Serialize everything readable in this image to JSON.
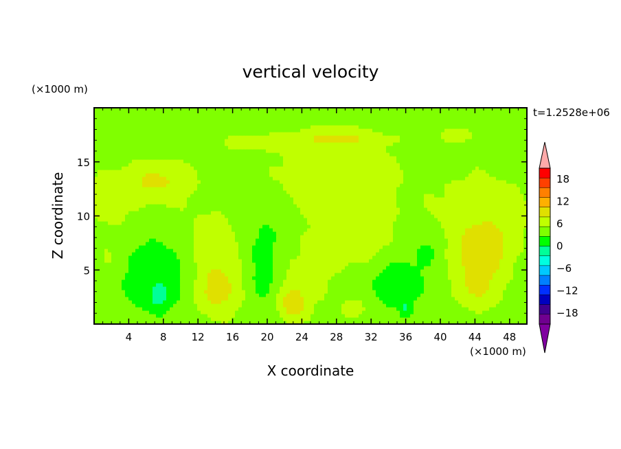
{
  "chart_data": {
    "type": "heatmap",
    "title": "vertical velocity",
    "xlabel": "X coordinate",
    "ylabel": "Z coordinate",
    "x_unit": "(×1000 m)",
    "y_unit": "(×1000 m)",
    "time_label": "t=1.2528e+06",
    "xlim": [
      0,
      50
    ],
    "ylim": [
      0,
      20
    ],
    "x_ticks": [
      4,
      8,
      12,
      16,
      20,
      24,
      28,
      32,
      36,
      40,
      44,
      48
    ],
    "y_ticks": [
      5,
      10,
      15
    ],
    "grid": false,
    "colorbar": {
      "ticks": [
        18,
        12,
        6,
        0,
        -6,
        -12,
        -18
      ],
      "levels": [
        21,
        18,
        15,
        12,
        9,
        6,
        3,
        0,
        -3,
        -6,
        -9,
        -12,
        -15,
        -18,
        -21
      ],
      "colors": [
        "#ff0000",
        "#ff4000",
        "#ff8000",
        "#ffb000",
        "#e0e000",
        "#c0ff00",
        "#80ff00",
        "#00ff00",
        "#00ff99",
        "#00ffe0",
        "#00c8ff",
        "#0080ff",
        "#0030ff",
        "#0000c0",
        "#400090",
        "#700090"
      ],
      "over_color": "#ffaaaa",
      "under_color": "#8000a0"
    },
    "background_value": 1.5,
    "features": [
      {
        "type": "blob",
        "cx": 4,
        "cz": 11.5,
        "rx": 7,
        "rz": 3.5,
        "v": 3.5
      },
      {
        "type": "blob",
        "cx": 8,
        "cz": 13.5,
        "rx": 4.5,
        "rz": 2,
        "v": 3.5
      },
      {
        "type": "blob",
        "cx": 14,
        "cz": 8,
        "rx": 4,
        "rz": 3,
        "v": 2.5
      },
      {
        "type": "blob",
        "cx": 28,
        "cz": 14,
        "rx": 9,
        "rz": 4.5,
        "v": 3.5
      },
      {
        "type": "blob",
        "cx": 28,
        "cz": 17.2,
        "rx": 6,
        "rz": 1,
        "v": 3.5
      },
      {
        "type": "blob",
        "cx": 18,
        "cz": 16.8,
        "rx": 4,
        "rz": 0.8,
        "v": 3.5
      },
      {
        "type": "blob",
        "cx": 30,
        "cz": 8,
        "rx": 6,
        "rz": 3.5,
        "v": 3.5
      },
      {
        "type": "blob",
        "cx": 45,
        "cz": 10,
        "rx": 7,
        "rz": 5,
        "v": 3.5
      },
      {
        "type": "blob",
        "cx": 42,
        "cz": 17.5,
        "rx": 2,
        "rz": 0.8,
        "v": 3.5
      },
      {
        "type": "blob",
        "cx": 16,
        "cz": 4.5,
        "rx": 5,
        "rz": 4.5,
        "v": 3.5
      },
      {
        "type": "blob",
        "cx": 24,
        "cz": 4,
        "rx": 4,
        "rz": 3.5,
        "v": 2.5
      },
      {
        "type": "blob",
        "cx": 1.5,
        "cz": 6,
        "rx": 2,
        "rz": 2,
        "v": 2
      },
      {
        "type": "blob",
        "cx": 44.5,
        "cz": 4.5,
        "rx": 3.8,
        "rz": 3.8,
        "v": 4
      },
      {
        "type": "blob",
        "cx": 45,
        "cz": 7,
        "rx": 3,
        "rz": 2.5,
        "v": 3
      },
      {
        "type": "blob",
        "cx": 14,
        "cz": 3,
        "rx": 2.5,
        "rz": 2.5,
        "v": 4
      },
      {
        "type": "blob",
        "cx": 23,
        "cz": 1.8,
        "rx": 1.8,
        "rz": 1.8,
        "v": 6
      },
      {
        "type": "blob",
        "cx": 30,
        "cz": 1.5,
        "rx": 2,
        "rz": 1.2,
        "v": 3
      },
      {
        "type": "blob",
        "cx": 44,
        "cz": 3.5,
        "rx": 1.5,
        "rz": 1.5,
        "v": 2.5
      },
      {
        "type": "blob",
        "cx": 7,
        "cz": 4.5,
        "rx": 4.5,
        "rz": 4,
        "v": -4
      },
      {
        "type": "blob",
        "cx": 6,
        "cz": 10,
        "rx": 3,
        "rz": 2,
        "v": -2.5
      },
      {
        "type": "blob",
        "cx": 19,
        "cz": 6,
        "rx": 3.5,
        "rz": 5,
        "v": -4
      },
      {
        "type": "blob",
        "cx": 35,
        "cz": 4,
        "rx": 4,
        "rz": 3,
        "v": -3.5
      },
      {
        "type": "blob",
        "cx": 38.5,
        "cz": 7,
        "rx": 2,
        "rz": 2,
        "v": -2.5
      },
      {
        "type": "blob",
        "cx": 7.5,
        "cz": 2.5,
        "rx": 1.2,
        "rz": 1.2,
        "v": -4
      },
      {
        "type": "blob",
        "cx": 36,
        "cz": 1.5,
        "rx": 0.8,
        "rz": 1,
        "v": -4
      },
      {
        "type": "blob",
        "cx": 19.5,
        "cz": 4,
        "rx": 1.5,
        "rz": 2,
        "v": -2
      }
    ]
  }
}
